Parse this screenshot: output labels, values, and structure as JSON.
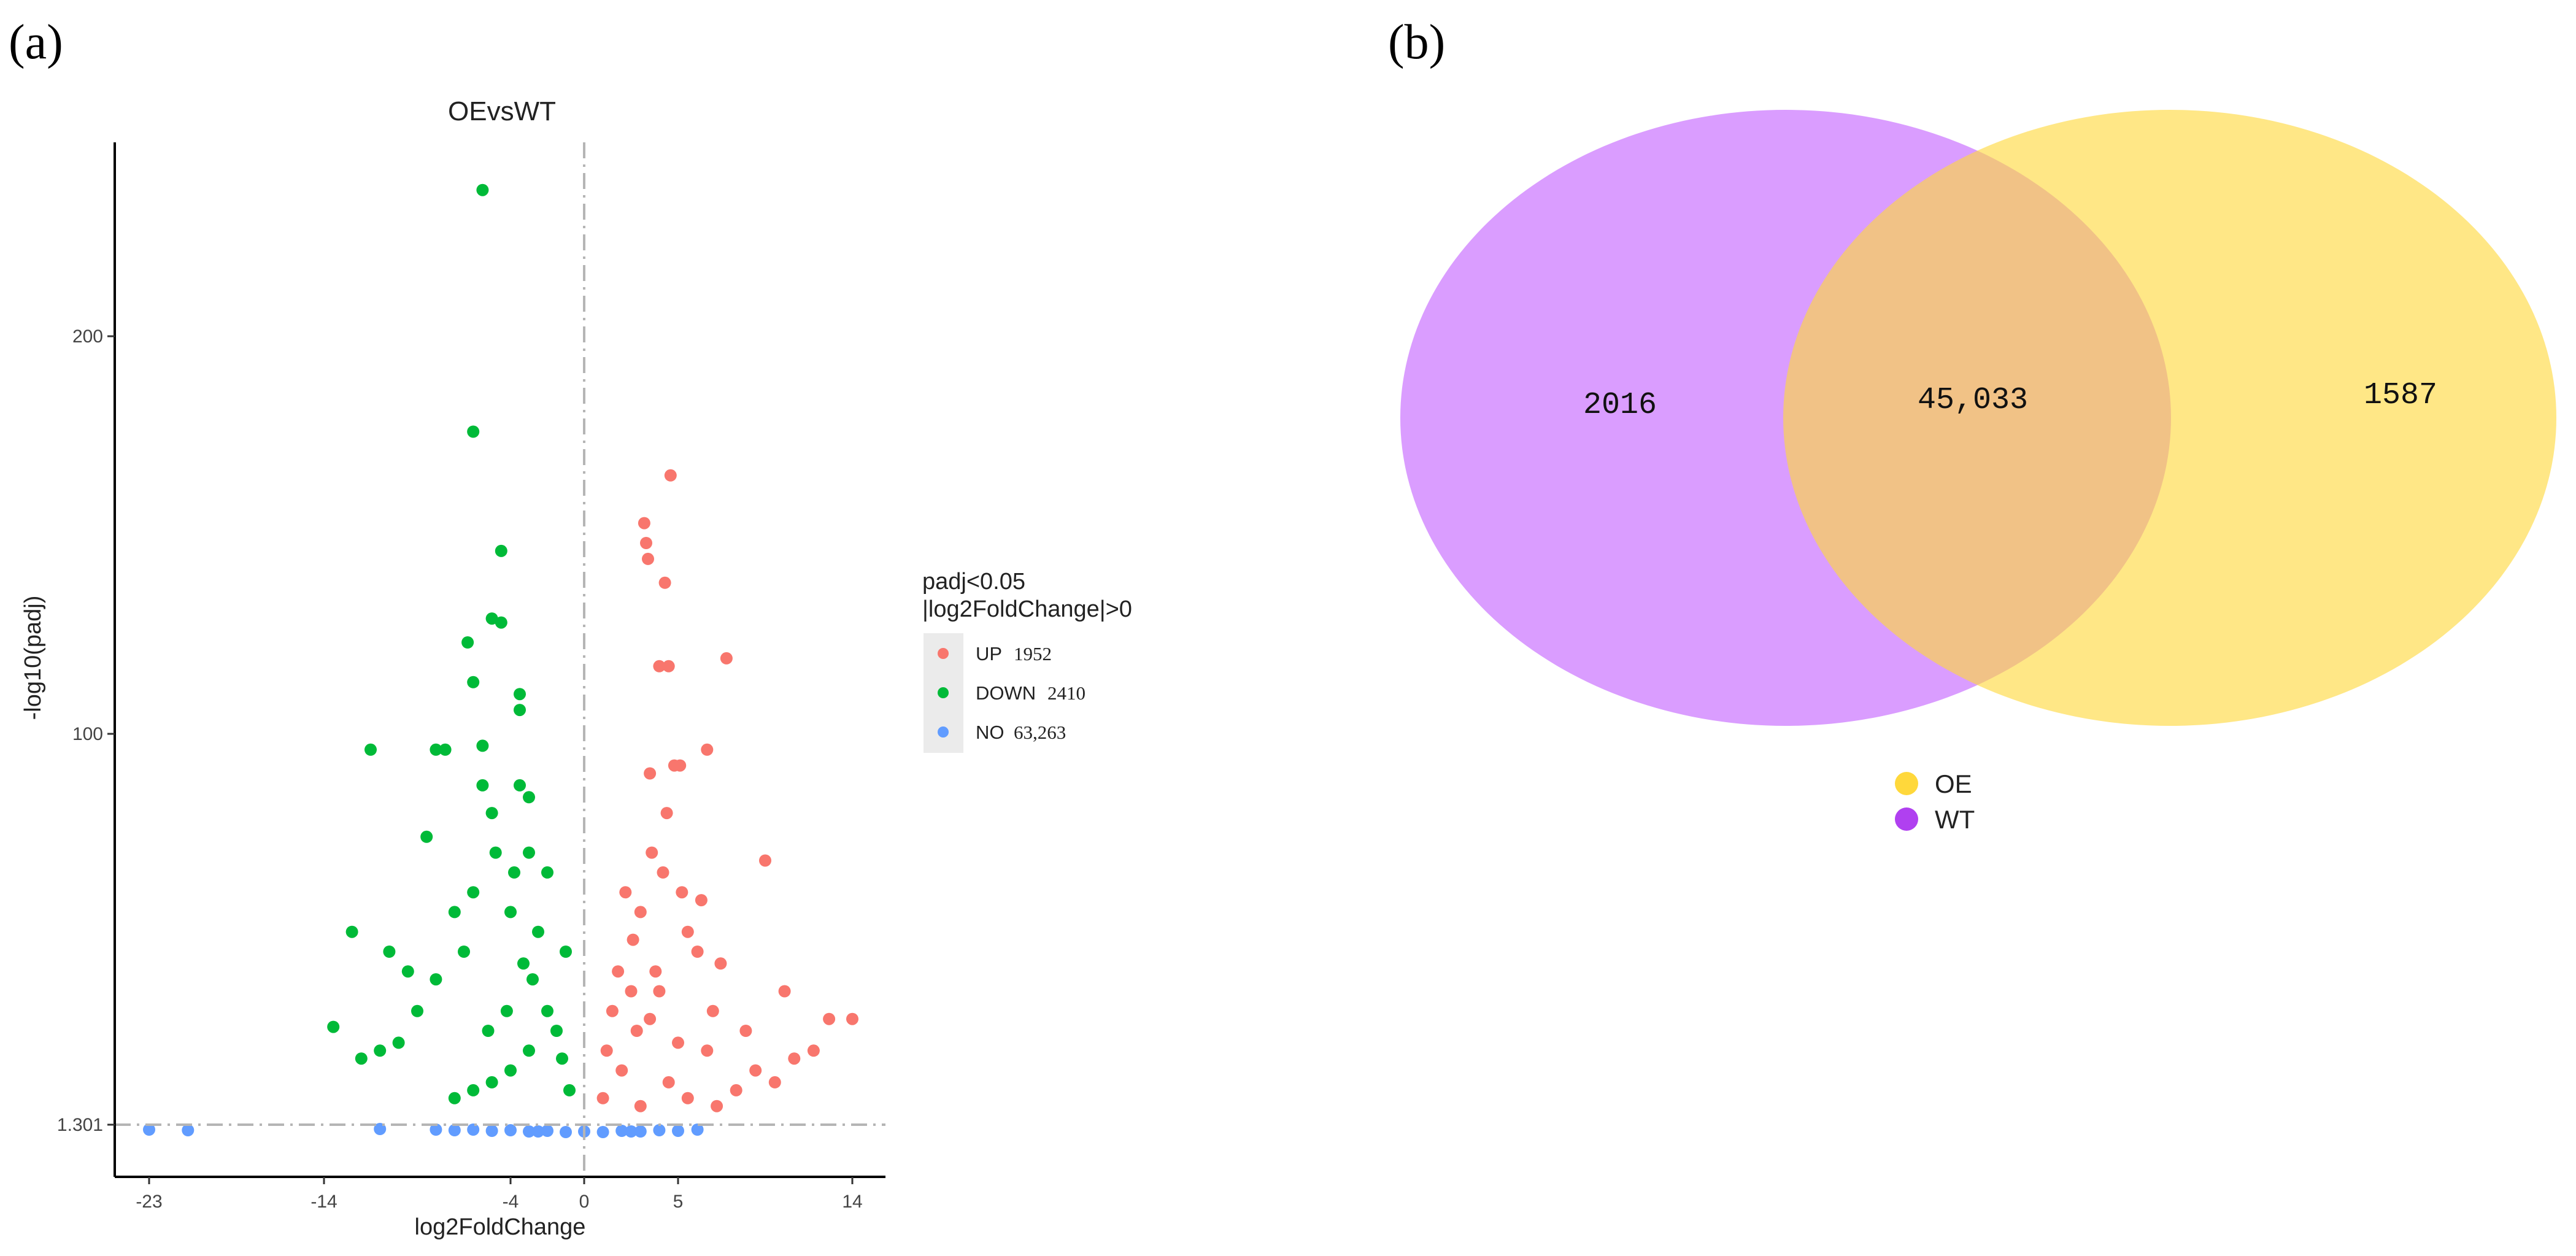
{
  "panels": {
    "a": "(a)",
    "b": "(b)"
  },
  "chart_data": [
    {
      "type": "scatter",
      "subtype": "volcano",
      "title": "OEvsWT",
      "xlabel": "log2FoldChange",
      "ylabel": "-log10(padj)",
      "x_ticks": [
        {
          "value": -23,
          "label": "-23"
        },
        {
          "value": -14,
          "label": "-14"
        },
        {
          "value": -4,
          "label": "-4"
        },
        {
          "value": 0,
          "label": "0"
        },
        {
          "value": 5,
          "label": "5"
        },
        {
          "value": 14,
          "label": "14"
        }
      ],
      "y_ticks": [
        {
          "value": 1.301,
          "label": "1.301"
        },
        {
          "value": 100,
          "label": "100"
        },
        {
          "value": 200,
          "label": "200"
        }
      ],
      "threshold_lines": {
        "x": 0,
        "y": 1.301
      },
      "legend": {
        "title_line1": "padj<0.05",
        "title_line2": "|log2FoldChange|>0",
        "placement": "right",
        "items": [
          {
            "label": "UP",
            "count": "1952",
            "color": "#F8766D"
          },
          {
            "label": "DOWN",
            "count": "2410",
            "color": "#00BA38"
          },
          {
            "label": "NO",
            "count": "63,263",
            "color": "#619CFF"
          }
        ]
      },
      "series": [
        {
          "name": "UP",
          "color": "#F8766D",
          "points": [
            [
              4.6,
              165
            ],
            [
              3.2,
              153
            ],
            [
              3.3,
              148
            ],
            [
              3.4,
              144
            ],
            [
              4.3,
              138
            ],
            [
              4.0,
              117
            ],
            [
              4.5,
              117
            ],
            [
              7.5,
              119
            ],
            [
              5.1,
              92
            ],
            [
              6.5,
              96
            ],
            [
              4.8,
              92
            ],
            [
              3.5,
              90
            ],
            [
              9.5,
              68
            ],
            [
              7.2,
              42
            ],
            [
              10.5,
              35
            ],
            [
              12.8,
              28
            ],
            [
              14.0,
              28
            ],
            [
              2.2,
              60
            ],
            [
              3.0,
              55
            ],
            [
              4.2,
              65
            ],
            [
              5.5,
              50
            ],
            [
              6.0,
              45
            ],
            [
              2.5,
              35
            ],
            [
              3.8,
              40
            ],
            [
              1.5,
              30
            ],
            [
              8.5,
              25
            ],
            [
              1.2,
              20
            ],
            [
              2.0,
              15
            ],
            [
              4.5,
              12
            ],
            [
              6.5,
              20
            ],
            [
              8.0,
              10
            ],
            [
              5.5,
              8
            ],
            [
              3.0,
              6
            ],
            [
              1.0,
              8
            ],
            [
              9.0,
              15
            ],
            [
              10.0,
              12
            ],
            [
              11.0,
              18
            ],
            [
              12.0,
              20
            ],
            [
              7.0,
              6
            ],
            [
              2.8,
              25
            ],
            [
              3.5,
              28
            ],
            [
              4.0,
              35
            ],
            [
              5.0,
              22
            ],
            [
              6.8,
              30
            ],
            [
              1.8,
              40
            ],
            [
              2.6,
              48
            ],
            [
              3.6,
              70
            ],
            [
              4.4,
              80
            ],
            [
              5.2,
              60
            ],
            [
              6.2,
              58
            ]
          ]
        },
        {
          "name": "DOWN",
          "color": "#00BA38",
          "points": [
            [
              -5.5,
              237
            ],
            [
              -6.0,
              176
            ],
            [
              -4.5,
              146
            ],
            [
              -5.0,
              129
            ],
            [
              -4.5,
              128
            ],
            [
              -6.3,
              123
            ],
            [
              -6.0,
              113
            ],
            [
              -3.5,
              110
            ],
            [
              -3.5,
              106
            ],
            [
              -11.5,
              96
            ],
            [
              -7.5,
              96
            ],
            [
              -5.5,
              97
            ],
            [
              -8.0,
              96
            ],
            [
              -5.5,
              87
            ],
            [
              -3.5,
              87
            ],
            [
              -3.0,
              84
            ],
            [
              -5.0,
              80
            ],
            [
              -8.5,
              74
            ],
            [
              -13.5,
              26
            ],
            [
              -12.5,
              50
            ],
            [
              -10.5,
              45
            ],
            [
              -9.5,
              40
            ],
            [
              -7.0,
              55
            ],
            [
              -6.0,
              60
            ],
            [
              -4.0,
              55
            ],
            [
              -3.0,
              70
            ],
            [
              -2.0,
              65
            ],
            [
              -1.0,
              45
            ],
            [
              -2.5,
              50
            ],
            [
              -3.8,
              65
            ],
            [
              -4.8,
              70
            ],
            [
              -6.5,
              45
            ],
            [
              -8.0,
              38
            ],
            [
              -9.0,
              30
            ],
            [
              -10.0,
              22
            ],
            [
              -11.0,
              20
            ],
            [
              -12.0,
              18
            ],
            [
              -2.0,
              30
            ],
            [
              -1.5,
              25
            ],
            [
              -3.0,
              20
            ],
            [
              -4.0,
              15
            ],
            [
              -5.0,
              12
            ],
            [
              -6.0,
              10
            ],
            [
              -7.0,
              8
            ],
            [
              -0.8,
              10
            ],
            [
              -1.2,
              18
            ],
            [
              -2.8,
              38
            ],
            [
              -3.3,
              42
            ],
            [
              -4.2,
              30
            ],
            [
              -5.2,
              25
            ]
          ]
        },
        {
          "name": "NO",
          "color": "#619CFF",
          "points": [
            [
              -23,
              0.5
            ],
            [
              -21,
              0.4
            ],
            [
              -11,
              0.6
            ],
            [
              -8,
              0.5
            ],
            [
              -7,
              0.4
            ],
            [
              -5,
              0.3
            ],
            [
              -4,
              0.4
            ],
            [
              -3,
              0.2
            ],
            [
              -2,
              0.3
            ],
            [
              -1,
              0.1
            ],
            [
              0,
              0.2
            ],
            [
              1,
              0.1
            ],
            [
              2,
              0.3
            ],
            [
              3,
              0.2
            ],
            [
              4,
              0.4
            ],
            [
              5,
              0.3
            ],
            [
              6,
              0.5
            ],
            [
              -6,
              0.5
            ],
            [
              -2.5,
              0.2
            ],
            [
              2.5,
              0.2
            ]
          ]
        }
      ]
    },
    {
      "type": "venn",
      "sets": [
        {
          "name": "WT",
          "only": "2016",
          "color": "#CC77FF"
        },
        {
          "name": "OE",
          "only": "1587",
          "color": "#FFD83B"
        }
      ],
      "intersection": "45,033",
      "legend": {
        "placement": "bottom",
        "items": [
          {
            "label": "OE",
            "color": "#FFD83B"
          },
          {
            "label": "WT",
            "color": "#B040F0"
          }
        ]
      }
    }
  ]
}
